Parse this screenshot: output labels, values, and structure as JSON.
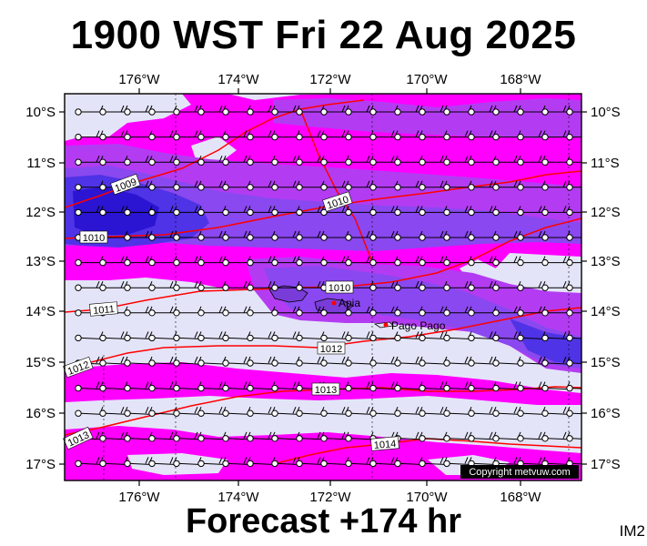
{
  "title": "1900 WST Fri 22 Aug 2025",
  "footer": "Forecast +174 hr",
  "image_code": "IM2",
  "copyright": "Copyright metvuw.com",
  "map": {
    "lon_labels": [
      "176°W",
      "174°W",
      "172°W",
      "170°W",
      "168°W"
    ],
    "lat_labels": [
      "10°S",
      "11°S",
      "12°S",
      "13°S",
      "14°S",
      "15°S",
      "16°S",
      "17°S"
    ],
    "isobar_labels": [
      "1009",
      "1010",
      "1010",
      "1010",
      "1011",
      "1012",
      "1012",
      "1013",
      "1014",
      "1013"
    ],
    "places": [
      "Apia",
      "Pago Pago"
    ],
    "colors": {
      "background": "#e4e4f8",
      "magenta": "#ff00ff",
      "purple": "#b33cf2",
      "violet": "#8a48f0",
      "blue": "#4f33e6",
      "deep_blue": "#2b14d2",
      "isobar": "#ff0000",
      "wind_barb": "#000000"
    }
  }
}
